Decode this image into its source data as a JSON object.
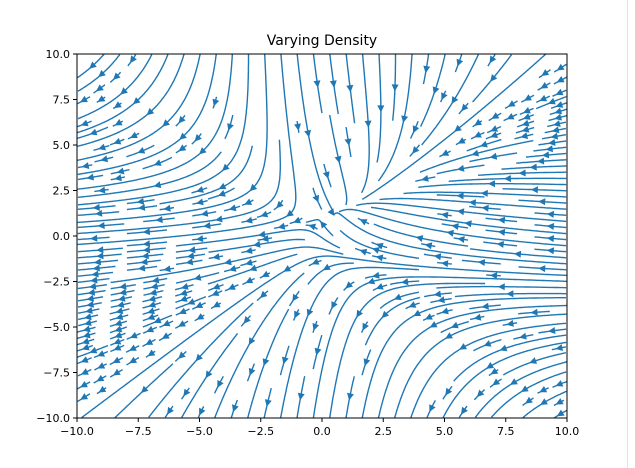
{
  "chart_data": {
    "type": "streamplot",
    "title": "Varying Density",
    "xlabel": "",
    "ylabel": "",
    "xlim": [
      -10,
      10
    ],
    "ylim": [
      -10,
      10
    ],
    "xticks": [
      -10,
      -7.5,
      -5,
      -2.5,
      0,
      2.5,
      5,
      7.5,
      10
    ],
    "yticks": [
      -10,
      -7.5,
      -5,
      -2.5,
      0,
      2.5,
      5,
      7.5,
      10
    ],
    "xtick_labels": [
      "−10.0",
      "−7.5",
      "−5.0",
      "−2.5",
      "0.0",
      "2.5",
      "5.0",
      "7.5",
      "10.0"
    ],
    "ytick_labels": [
      "−10.0",
      "−7.5",
      "−5.0",
      "−2.5",
      "0.0",
      "2.5",
      "5.0",
      "7.5",
      "10.0"
    ],
    "field": {
      "u": "-1 - x^2 + y",
      "v": "1 + x - y^2"
    },
    "density": "varying: sparse near top and bottom edges, dense near y = 0",
    "grid": false,
    "legend": false,
    "color": "#1f77b4"
  }
}
